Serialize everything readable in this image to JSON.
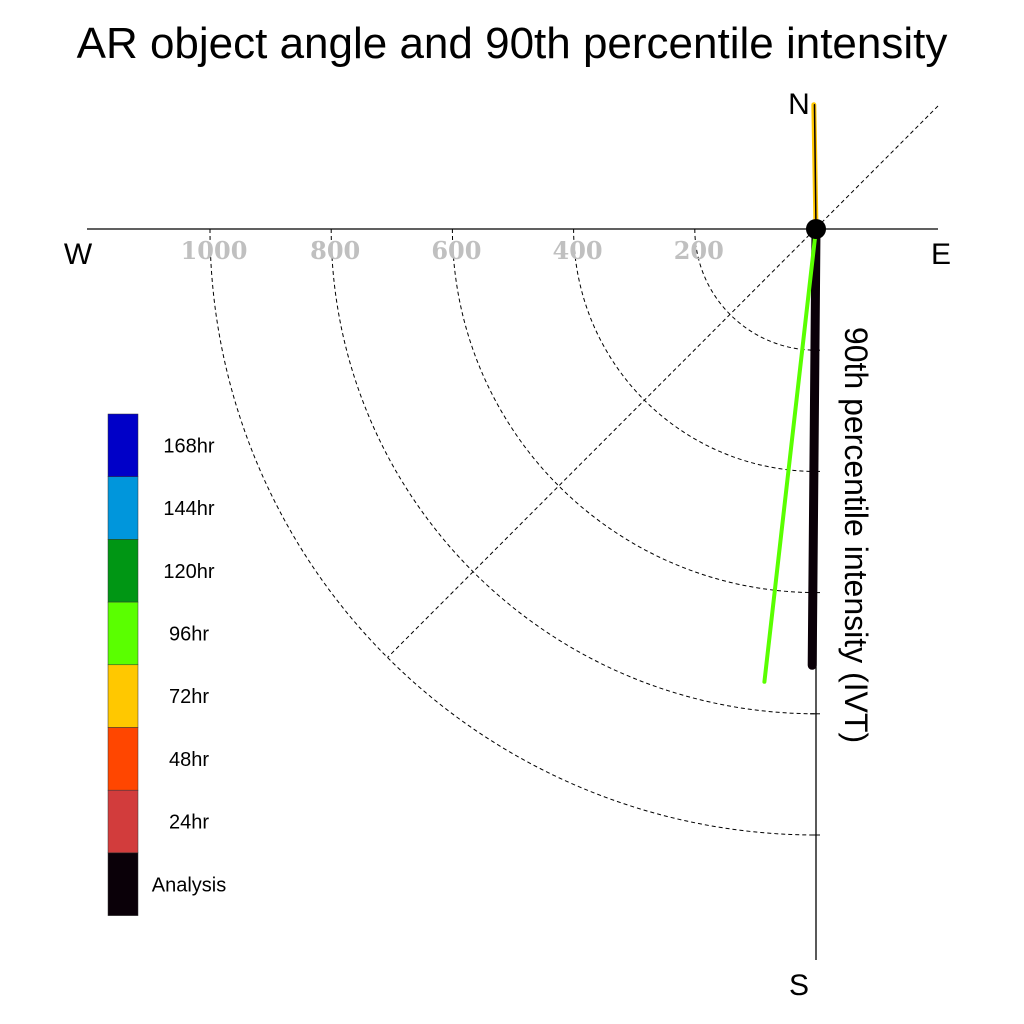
{
  "chart_data": {
    "type": "polar-vector",
    "title": "AR object angle and 90th percentile intensity",
    "ylabel": "90th percentile intensity (IVT)",
    "compass": {
      "n": "N",
      "s": "S",
      "e": "E",
      "w": "W"
    },
    "radial_ticks": [
      1000,
      800,
      600,
      400,
      200
    ],
    "radial_lim": [
      0,
      1200
    ],
    "grid": true,
    "legend_position": "left",
    "legend": [
      {
        "label": "168hr",
        "color": "#0000c8"
      },
      {
        "label": "144hr",
        "color": "#0096dc"
      },
      {
        "label": "120hr",
        "color": "#009614"
      },
      {
        "label": "96hr",
        "color": "#5aff00"
      },
      {
        "label": "72hr",
        "color": "#ffc800"
      },
      {
        "label": "48hr",
        "color": "#ff4600"
      },
      {
        "label": "24hr",
        "color": "#d23c3c"
      },
      {
        "label": "Analysis",
        "color": "#0a0008"
      }
    ],
    "series": [
      {
        "name": "Analysis",
        "value": 720,
        "angle_deg": 180.5,
        "color": "#0a0008",
        "lw": 9
      },
      {
        "name": "96hr",
        "value": 752,
        "angle_deg": 186.5,
        "color": "#5aff00",
        "lw": 4
      },
      {
        "name": "72hr",
        "value": 205,
        "angle_deg": 359.0,
        "color": "#ffc800",
        "lw": 5
      },
      {
        "name": "Analysis",
        "value": 205,
        "angle_deg": 359.3,
        "color": "#0a0008",
        "lw": 1.5
      }
    ]
  }
}
